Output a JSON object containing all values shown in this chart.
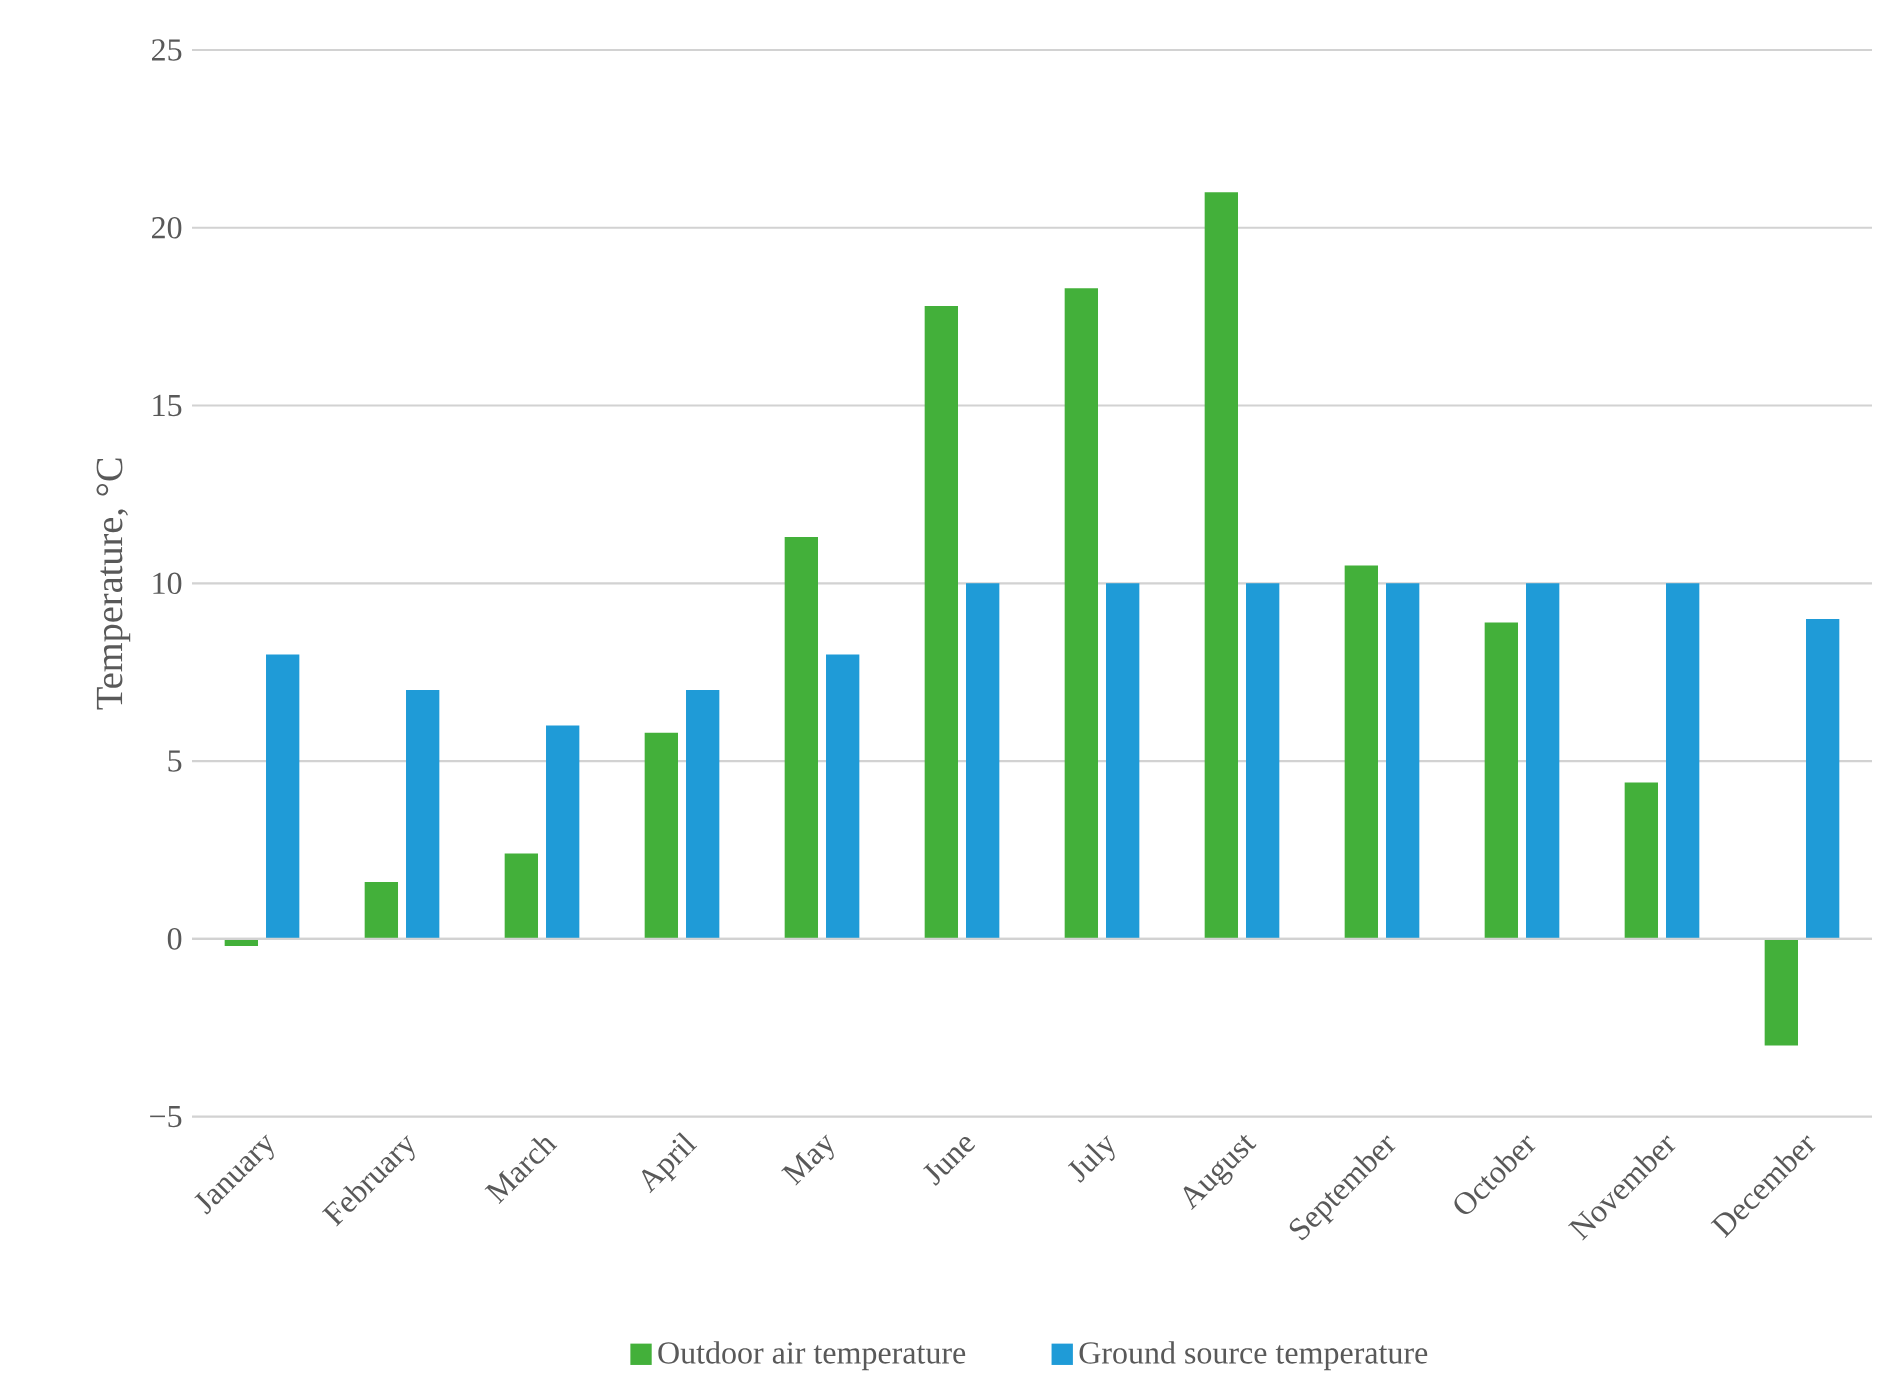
{
  "chart_data": {
    "type": "bar",
    "ylabel": "Temperature, °C",
    "categories": [
      "January",
      "February",
      "March",
      "April",
      "May",
      "June",
      "July",
      "August",
      "September",
      "October",
      "November",
      "December"
    ],
    "series": [
      {
        "name": "Outdoor air temperature",
        "color": "#43b03a",
        "values": [
          -0.2,
          1.6,
          2.4,
          5.8,
          11.3,
          17.8,
          18.3,
          21.0,
          10.5,
          8.9,
          4.4,
          -3.0
        ]
      },
      {
        "name": "Ground source temperature",
        "color": "#1f9bd7",
        "values": [
          8,
          7,
          6,
          7,
          8,
          10,
          10,
          10,
          10,
          10,
          10,
          9
        ]
      }
    ],
    "ylim": [
      -5,
      25
    ],
    "yticks": [
      {
        "value": -5,
        "label": "−5"
      },
      0,
      5,
      10,
      15,
      20,
      25
    ],
    "grid": "y",
    "legend": "bottom"
  }
}
